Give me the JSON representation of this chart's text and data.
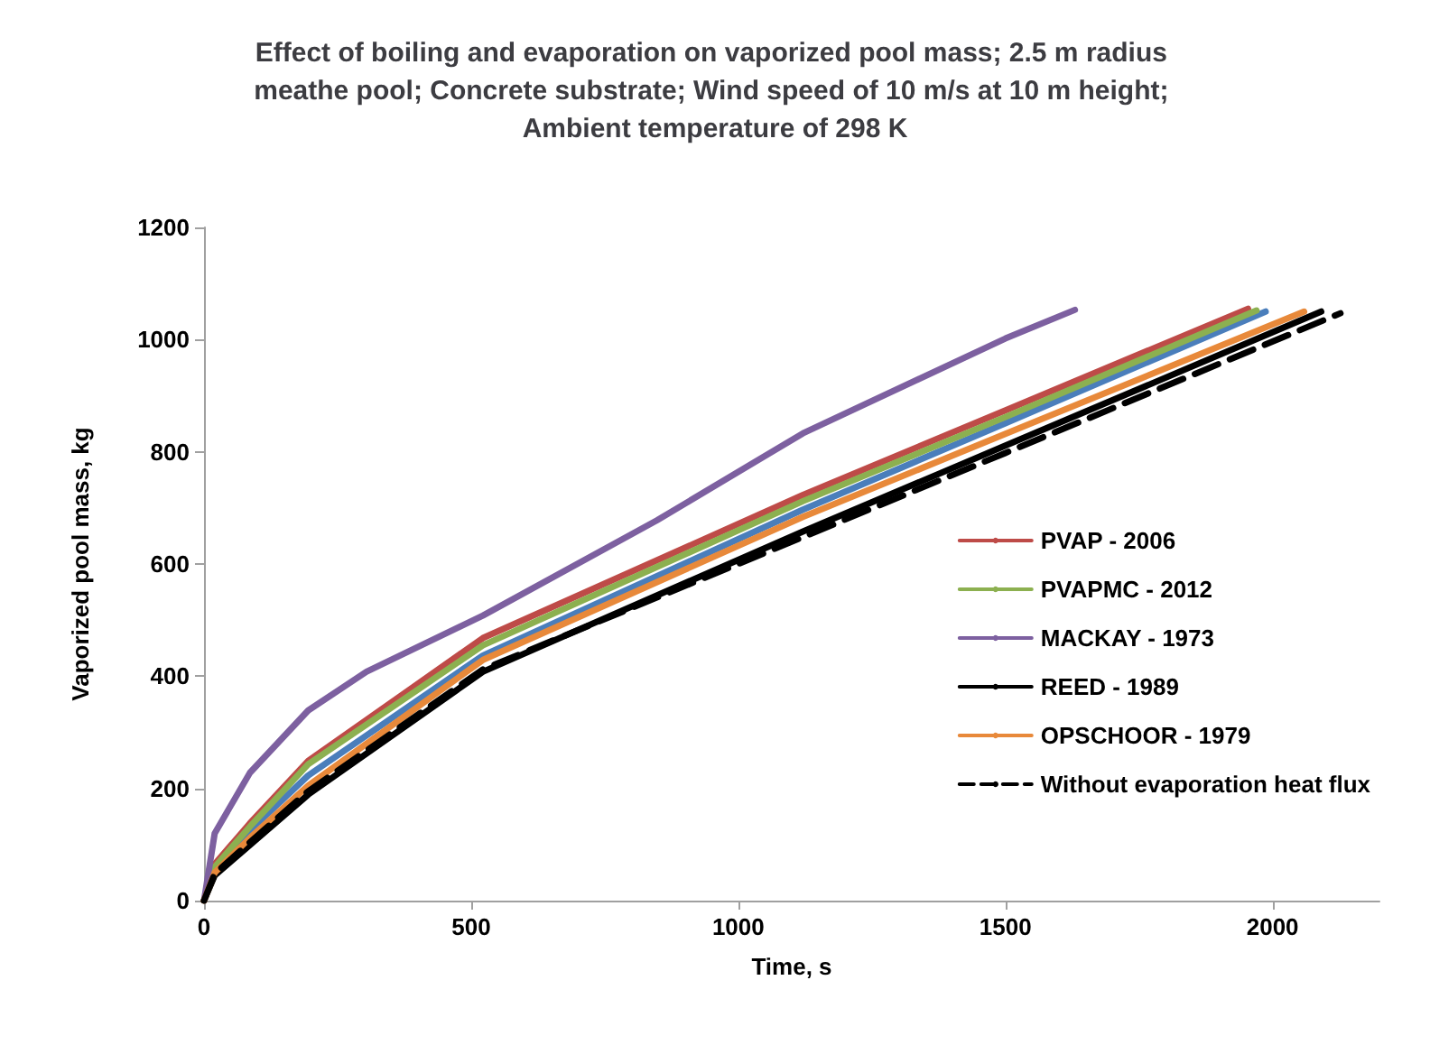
{
  "chart_data": {
    "type": "line",
    "title": "Effect of boiling and evaporation on vaporized pool mass; 2.5 m radius meathe pool; Concrete substrate; Wind speed of 10 m/s at 10 m height; Ambient temperature of 298 K",
    "xlabel": "Time, s",
    "ylabel": "Vaporized pool mass, kg",
    "xlim": [
      0,
      2200
    ],
    "xticks": [
      0,
      500,
      1000,
      1500,
      2000
    ],
    "ylim": [
      0,
      1200
    ],
    "yticks": [
      0,
      200,
      400,
      600,
      800,
      1000,
      1200
    ],
    "grid": false,
    "legend": "right",
    "marker": "none",
    "line_style": "solid",
    "series": [
      {
        "color": "#4a7ebb",
        "x": [
          0,
          20,
          86,
          195,
          522,
          1121,
          1500,
          1987
        ],
        "values": [
          0,
          55,
          125,
          223,
          437,
          697,
          851,
          1050
        ]
      },
      {
        "name": "PVAP - 2006",
        "color": "#be4b48",
        "x": [
          0,
          20,
          86,
          195,
          522,
          1121,
          1500,
          1954
        ],
        "values": [
          0,
          65,
          138,
          249,
          468,
          723,
          874,
          1055
        ]
      },
      {
        "name": "PVAPMC - 2012",
        "color": "#8cb050",
        "x": [
          0,
          20,
          86,
          195,
          522,
          1121,
          1500,
          1970
        ],
        "values": [
          0,
          60,
          132,
          243,
          455,
          712,
          862,
          1052
        ]
      },
      {
        "name": "MACKAY - 1973",
        "color": "#7d60a0",
        "x": [
          0,
          20,
          86,
          195,
          304,
          522,
          848,
          1121,
          1500,
          1630
        ],
        "values": [
          0,
          120,
          228,
          339,
          408,
          508,
          678,
          833,
          1002,
          1053
        ]
      },
      {
        "name": "REED - 1989",
        "color": "#000000",
        "x": [
          0,
          20,
          86,
          195,
          522,
          1121,
          1500,
          2091
        ],
        "values": [
          0,
          45,
          99,
          189,
          408,
          658,
          811,
          1050
        ]
      },
      {
        "name": "OPSCHOOR - 1979",
        "color": "#e8893a",
        "x": [
          0,
          20,
          86,
          195,
          522,
          1121,
          1500,
          2059
        ],
        "values": [
          0,
          50,
          112,
          205,
          429,
          684,
          832,
          1050
        ]
      },
      {
        "name": "Without evaporation heat flux",
        "color": "#000000",
        "line_style": "dashed",
        "x": [
          0,
          20,
          86,
          195,
          522,
          1121,
          1500,
          2127
        ],
        "values": [
          0,
          48,
          104,
          195,
          412,
          648,
          798,
          1047
        ]
      }
    ]
  }
}
